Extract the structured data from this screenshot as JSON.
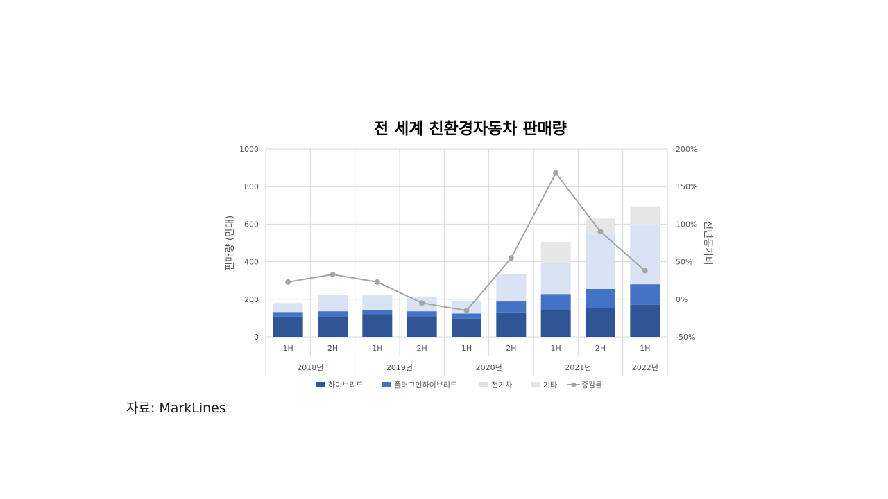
{
  "chart_data": {
    "type": "bar",
    "title": "전 세계 친환경자동차 판매량",
    "ylabel": "판매량 (만대)",
    "y2label": "전년동기비",
    "ylim": [
      0,
      1000
    ],
    "y2lim": [
      -50,
      200
    ],
    "y_ticks": [
      "0",
      "200",
      "400",
      "600",
      "800",
      "1000"
    ],
    "y2_ticks": [
      "-50%",
      "0%",
      "50%",
      "100%",
      "150%",
      "200%"
    ],
    "grid": true,
    "legend_position": "bottom",
    "categories": [
      "1H",
      "2H",
      "1H",
      "2H",
      "1H",
      "2H",
      "1H",
      "2H",
      "1H"
    ],
    "year_groups": [
      {
        "label": "2018년",
        "span": 2
      },
      {
        "label": "2019년",
        "span": 2
      },
      {
        "label": "2020년",
        "span": 2
      },
      {
        "label": "2021년",
        "span": 2
      },
      {
        "label": "2022년",
        "span": 1
      }
    ],
    "series": [
      {
        "name": "하이브리드",
        "type": "bar",
        "color": "#2f5597",
        "values": [
          108,
          104,
          120,
          110,
          97,
          130,
          147,
          155,
          170
        ]
      },
      {
        "name": "플러그인하이브리드",
        "type": "bar",
        "color": "#4472c4",
        "values": [
          24,
          32,
          24,
          26,
          27,
          58,
          81,
          100,
          110
        ]
      },
      {
        "name": "전기차",
        "type": "bar",
        "color": "#dae3f3",
        "values": [
          48,
          89,
          77,
          79,
          65,
          145,
          167,
          290,
          315
        ]
      },
      {
        "name": "기타",
        "type": "bar",
        "color": "#e7e6e6",
        "values": [
          0,
          0,
          0,
          0,
          0,
          0,
          110,
          85,
          100
        ]
      },
      {
        "name": "증감률",
        "type": "line",
        "axis": "right",
        "color": "#a5a5a5",
        "values": [
          23,
          33,
          23,
          -5,
          -15,
          55,
          168,
          90,
          38
        ]
      }
    ]
  },
  "source": {
    "text": "자료: MarkLines"
  }
}
